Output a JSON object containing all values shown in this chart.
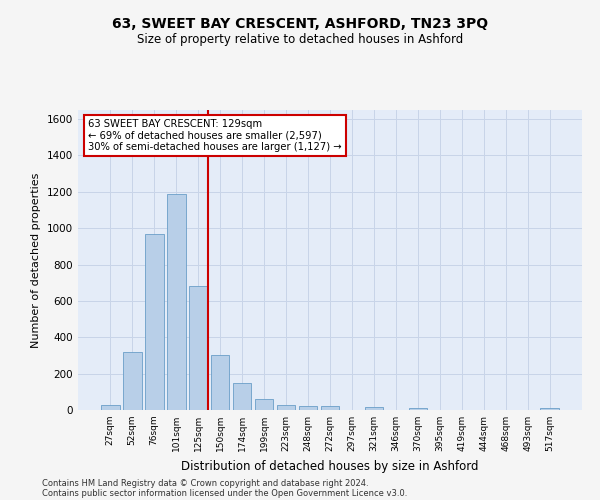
{
  "title": "63, SWEET BAY CRESCENT, ASHFORD, TN23 3PQ",
  "subtitle": "Size of property relative to detached houses in Ashford",
  "xlabel": "Distribution of detached houses by size in Ashford",
  "ylabel": "Number of detached properties",
  "bar_labels": [
    "27sqm",
    "52sqm",
    "76sqm",
    "101sqm",
    "125sqm",
    "150sqm",
    "174sqm",
    "199sqm",
    "223sqm",
    "248sqm",
    "272sqm",
    "297sqm",
    "321sqm",
    "346sqm",
    "370sqm",
    "395sqm",
    "419sqm",
    "444sqm",
    "468sqm",
    "493sqm",
    "517sqm"
  ],
  "bar_values": [
    30,
    320,
    970,
    1190,
    680,
    300,
    150,
    60,
    30,
    20,
    20,
    0,
    15,
    0,
    10,
    0,
    0,
    0,
    0,
    0,
    10
  ],
  "bar_color": "#b8cfe8",
  "bar_edgecolor": "#6a9ec8",
  "vline_color": "#cc0000",
  "vline_x_index": 4,
  "annotation_text": "63 SWEET BAY CRESCENT: 129sqm\n← 69% of detached houses are smaller (2,597)\n30% of semi-detached houses are larger (1,127) →",
  "annotation_box_color": "#ffffff",
  "annotation_box_edgecolor": "#cc0000",
  "ylim": [
    0,
    1650
  ],
  "yticks": [
    0,
    200,
    400,
    600,
    800,
    1000,
    1200,
    1400,
    1600
  ],
  "grid_color": "#c8d4e8",
  "bg_color": "#e4ecf8",
  "fig_bg_color": "#f5f5f5",
  "footer1": "Contains HM Land Registry data © Crown copyright and database right 2024.",
  "footer2": "Contains public sector information licensed under the Open Government Licence v3.0."
}
